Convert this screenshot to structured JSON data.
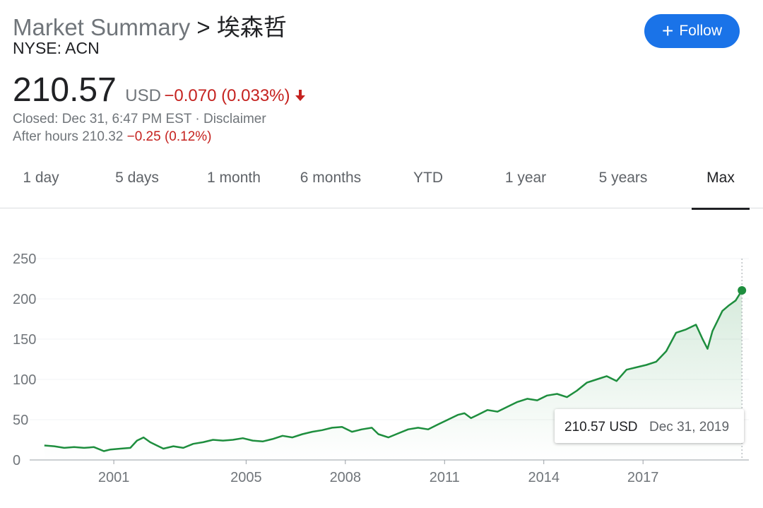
{
  "header": {
    "title": "Market Summary",
    "separator": ">",
    "name": "埃森哲",
    "ticker": "NYSE: ACN",
    "price": "210.57",
    "currency": "USD",
    "change": "−0.070 (0.033%)",
    "status": "Closed: Dec 31, 6:47 PM EST · Disclaimer",
    "after_hours": "After hours 210.32",
    "after_hours_change": "−0.25 (0.12%)",
    "follow": "Follow"
  },
  "tabs": [
    "1 day",
    "5 days",
    "1 month",
    "6 months",
    "YTD",
    "1 year",
    "5 years",
    "Max"
  ],
  "chart_data": {
    "type": "line",
    "color": "#1e8e3e",
    "x": [
      1998.9,
      1999.2,
      1999.5,
      1999.8,
      2000.1,
      2000.4,
      2000.7,
      2000.9,
      2001.2,
      2001.5,
      2001.7,
      2001.9,
      2002.1,
      2002.3,
      2002.5,
      2002.8,
      2003.1,
      2003.4,
      2003.7,
      2004.0,
      2004.3,
      2004.6,
      2004.9,
      2005.2,
      2005.5,
      2005.8,
      2006.1,
      2006.4,
      2006.7,
      2007.0,
      2007.3,
      2007.6,
      2007.9,
      2008.2,
      2008.5,
      2008.8,
      2009.0,
      2009.3,
      2009.6,
      2009.9,
      2010.2,
      2010.5,
      2010.8,
      2011.1,
      2011.4,
      2011.6,
      2011.8,
      2012.0,
      2012.3,
      2012.6,
      2012.9,
      2013.2,
      2013.5,
      2013.8,
      2014.1,
      2014.4,
      2014.7,
      2015.0,
      2015.3,
      2015.6,
      2015.9,
      2016.2,
      2016.5,
      2016.8,
      2017.1,
      2017.4,
      2017.7,
      2018.0,
      2018.3,
      2018.6,
      2018.8,
      2018.95,
      2019.1,
      2019.4,
      2019.6,
      2019.8,
      2019.99
    ],
    "values": [
      18,
      17,
      15,
      16,
      15,
      16,
      11,
      13,
      14,
      15,
      24,
      28,
      22,
      18,
      14,
      17,
      15,
      20,
      22,
      25,
      24,
      25,
      27,
      24,
      23,
      26,
      30,
      28,
      32,
      35,
      37,
      40,
      41,
      35,
      38,
      40,
      32,
      28,
      33,
      38,
      40,
      38,
      44,
      50,
      56,
      58,
      52,
      56,
      62,
      60,
      66,
      72,
      76,
      74,
      80,
      82,
      78,
      86,
      96,
      100,
      104,
      98,
      112,
      115,
      118,
      122,
      135,
      158,
      162,
      168,
      150,
      138,
      160,
      185,
      192,
      198,
      210.57
    ],
    "xlim": [
      1998.2,
      2020.2
    ],
    "ylim": [
      0,
      250
    ],
    "xticks": [
      2001,
      2005,
      2008,
      2011,
      2014,
      2017
    ],
    "yticks": [
      0,
      50,
      100,
      150,
      200,
      250
    ],
    "grid": true,
    "tooltip": {
      "value": "210.57 USD",
      "date": "Dec 31, 2019"
    }
  }
}
